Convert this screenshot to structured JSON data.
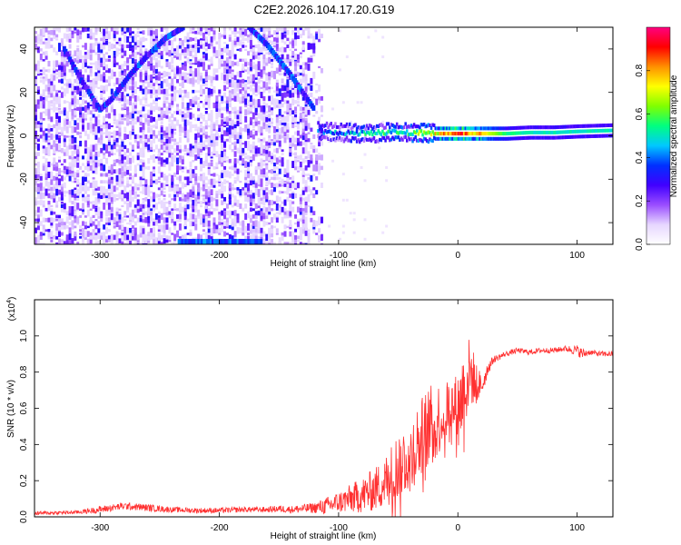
{
  "title": "C2E2.2026.104.17.20.G19",
  "chart_data": [
    {
      "type": "heatmap",
      "xlabel": "Height of straight line (km)",
      "ylabel": "Frequency (Hz)",
      "xlim": [
        -355,
        130
      ],
      "ylim": [
        -50,
        50
      ],
      "xticks": [
        -300,
        -200,
        -100,
        0,
        100
      ],
      "yticks": [
        -40,
        -20,
        0,
        20,
        40
      ],
      "colorbar": {
        "label": "Normalized spectral amplitude",
        "range": [
          0,
          1
        ],
        "ticks": [
          "0.0",
          "0.2",
          "0.4",
          "0.6",
          "0.8"
        ],
        "tick_values": [
          0.0,
          0.2,
          0.4,
          0.6,
          0.8
        ],
        "colors": [
          "#ffffff",
          "#e6d6ff",
          "#9a4dff",
          "#4000ff",
          "#0030ff",
          "#00c8ff",
          "#00ff80",
          "#80ff00",
          "#ffff00",
          "#ff9000",
          "#ff0000",
          "#ff0080"
        ]
      },
      "features": {
        "carrier_track": {
          "note": "strong line near 0 Hz",
          "x": [
            -118,
            -100,
            -80,
            -60,
            -40,
            -20,
            0,
            20,
            40,
            60,
            80,
            100,
            130
          ],
          "y": [
            2,
            1.5,
            1,
            1.5,
            1.5,
            1,
            1,
            1,
            1,
            1.5,
            1.5,
            2,
            2.5
          ],
          "amplitude": [
            0.35,
            0.4,
            0.45,
            0.5,
            0.55,
            0.7,
            0.9,
            0.75,
            0.55,
            0.5,
            0.5,
            0.5,
            0.5
          ]
        },
        "reflection_track_left": {
          "x": [
            -330,
            -315,
            -300,
            -290,
            -275,
            -260,
            -245,
            -230
          ],
          "y": [
            40,
            25,
            12,
            17,
            28,
            37,
            45,
            50
          ]
        },
        "reflection_track_right": {
          "x": [
            -175,
            -160,
            -150,
            -140,
            -130,
            -120
          ],
          "y": [
            50,
            42,
            35,
            28,
            20,
            12
          ]
        }
      }
    },
    {
      "type": "line",
      "xlabel": "Height of straight line (km)",
      "ylabel": "SNR (10 * v/v)",
      "y_exponent_label": "(x10",
      "y_exponent": "4",
      "xlim": [
        -355,
        130
      ],
      "ylim": [
        0,
        1.2
      ],
      "xticks": [
        -300,
        -200,
        -100,
        0,
        100
      ],
      "yticks": [
        "0.0",
        "0.2",
        "0.4",
        "0.6",
        "0.8",
        "1.0"
      ],
      "ytick_values": [
        0.0,
        0.2,
        0.4,
        0.6,
        0.8,
        1.0
      ],
      "color": "#ff3030",
      "series": [
        {
          "x": [
            -355,
            -320,
            -300,
            -280,
            -260,
            -240,
            -220,
            -200,
            -180,
            -160,
            -150,
            -140,
            -120,
            -110,
            -100,
            -90,
            -80,
            -70,
            -60,
            -50,
            -40,
            -35,
            -30,
            -25,
            -20,
            -15,
            -10,
            -5,
            0,
            5,
            10,
            15,
            20,
            25,
            30,
            40,
            50,
            60,
            70,
            80,
            90,
            100,
            105,
            110,
            120,
            130
          ],
          "y": [
            0.02,
            0.025,
            0.04,
            0.06,
            0.05,
            0.04,
            0.035,
            0.035,
            0.04,
            0.04,
            0.045,
            0.04,
            0.05,
            0.06,
            0.08,
            0.1,
            0.12,
            0.15,
            0.2,
            0.28,
            0.35,
            0.4,
            0.45,
            0.5,
            0.52,
            0.55,
            0.6,
            0.62,
            0.6,
            0.7,
            0.8,
            0.75,
            0.72,
            0.82,
            0.87,
            0.9,
            0.92,
            0.91,
            0.92,
            0.92,
            0.93,
            0.92,
            0.9,
            0.91,
            0.9,
            0.9
          ],
          "noise_amplitude": [
            0.01,
            0.01,
            0.02,
            0.02,
            0.02,
            0.015,
            0.015,
            0.015,
            0.015,
            0.015,
            0.02,
            0.02,
            0.03,
            0.05,
            0.06,
            0.08,
            0.1,
            0.12,
            0.15,
            0.2,
            0.2,
            0.22,
            0.22,
            0.22,
            0.22,
            0.2,
            0.18,
            0.15,
            0.2,
            0.25,
            0.2,
            0.12,
            0.06,
            0.04,
            0.02,
            0.015,
            0.015,
            0.015,
            0.015,
            0.015,
            0.015,
            0.03,
            0.03,
            0.015,
            0.015,
            0.015
          ]
        }
      ]
    }
  ]
}
